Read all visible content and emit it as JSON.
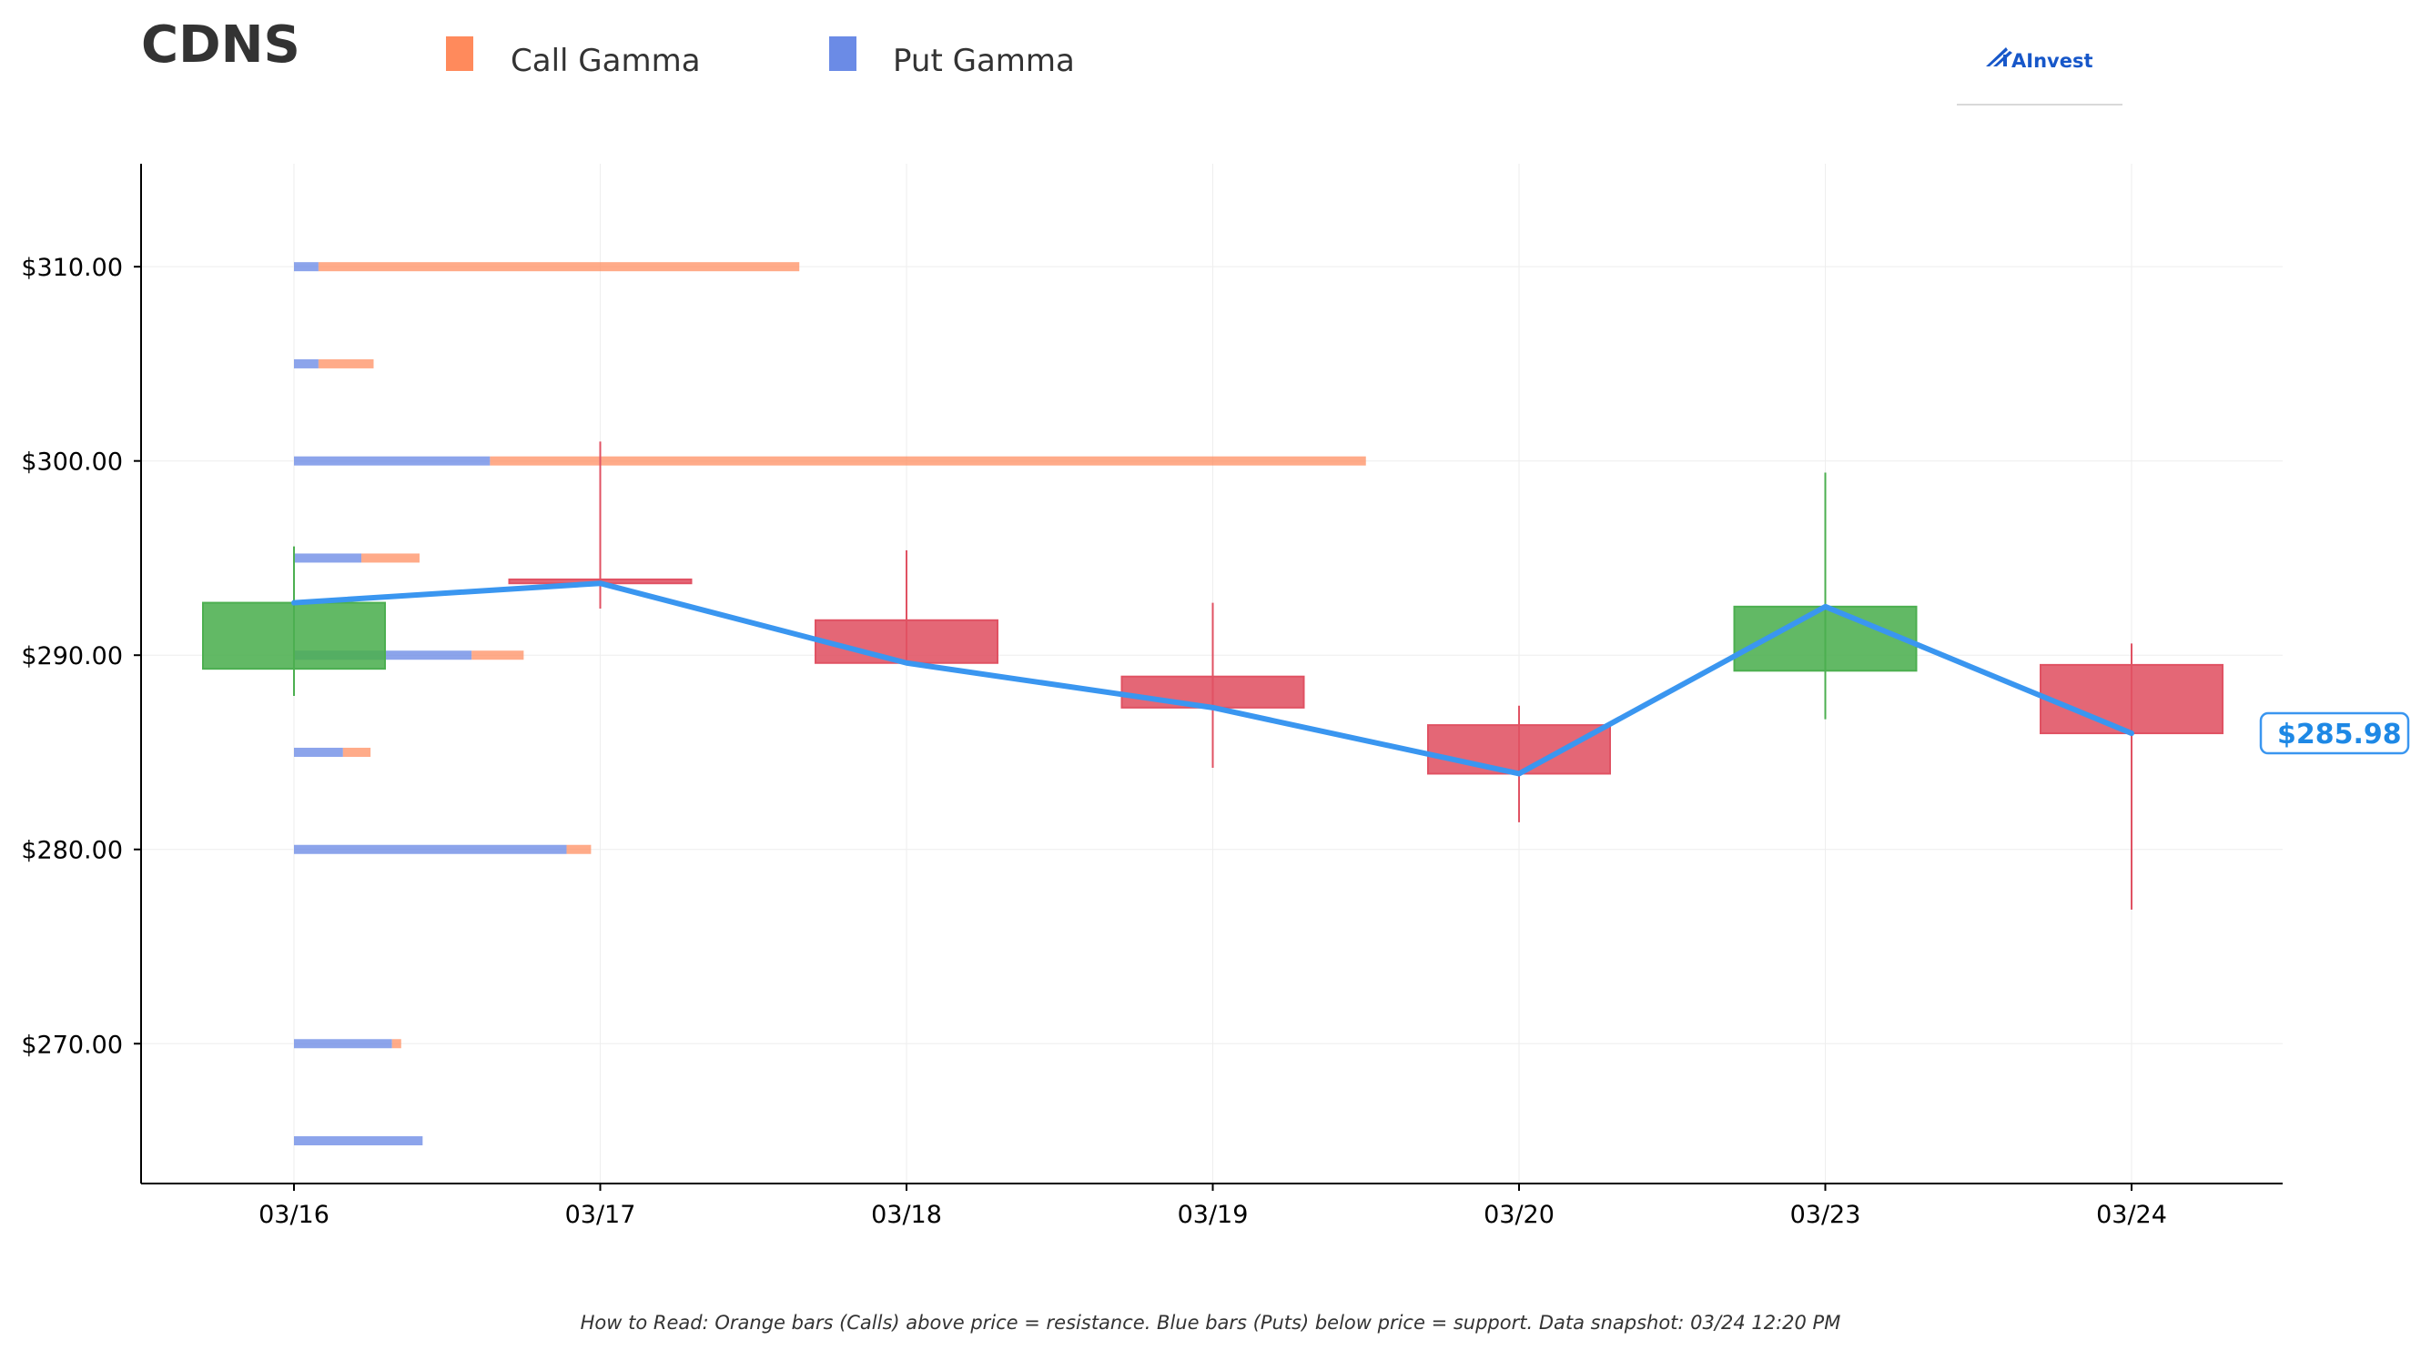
{
  "title": "CDNS",
  "legend": [
    {
      "label": "Call Gamma",
      "color": "#ff8a5c"
    },
    {
      "label": "Put Gamma",
      "color": "#6b8be6"
    }
  ],
  "logo": {
    "text": "AInvest",
    "icon": "aim-logo-icon"
  },
  "footnote": "How to Read: Orange bars (Calls) above price = resistance. Blue bars (Puts) below price = support. Data snapshot: 03/24 12:20 PM",
  "price_tag": "$285.98",
  "colors": {
    "up": "#4caf50",
    "down": "#e05263",
    "line": "#3a96f0",
    "call": "#ff8a5c",
    "put": "#6b8be6"
  },
  "chart_data": [
    {
      "type": "candlestick",
      "title": "CDNS",
      "categories": [
        "03/16",
        "03/17",
        "03/18",
        "03/19",
        "03/20",
        "03/23",
        "03/24"
      ],
      "ohlc": [
        {
          "date": "03/16",
          "open": 289.3,
          "high": 295.6,
          "low": 287.9,
          "close": 292.7
        },
        {
          "date": "03/17",
          "open": 293.9,
          "high": 301.0,
          "low": 292.4,
          "close": 293.7
        },
        {
          "date": "03/18",
          "open": 291.8,
          "high": 295.4,
          "low": 289.5,
          "close": 289.6
        },
        {
          "date": "03/19",
          "open": 288.9,
          "high": 292.7,
          "low": 284.2,
          "close": 287.3
        },
        {
          "date": "03/20",
          "open": 286.4,
          "high": 287.4,
          "low": 281.4,
          "close": 283.9
        },
        {
          "date": "03/23",
          "open": 289.2,
          "high": 299.4,
          "low": 286.7,
          "close": 292.5
        },
        {
          "date": "03/24",
          "open": 289.5,
          "high": 290.6,
          "low": 276.9,
          "close": 285.98
        }
      ],
      "close_line": [
        292.7,
        293.7,
        289.6,
        287.3,
        283.9,
        292.5,
        285.98
      ],
      "ylim": [
        262.8,
        315.3
      ],
      "yticks": [
        270,
        280,
        290,
        300,
        310
      ],
      "ytick_labels": [
        "$270.00",
        "$280.00",
        "$290.00",
        "$300.00",
        "$310.00"
      ],
      "grid": true
    },
    {
      "type": "bar",
      "orientation": "horizontal",
      "stacked": true,
      "categories": [
        310,
        305,
        300,
        295,
        290,
        285,
        280,
        270,
        265
      ],
      "series": [
        {
          "name": "Put Gamma",
          "values": [
            0.08,
            0.08,
            0.64,
            0.22,
            0.58,
            0.16,
            0.89,
            0.32,
            0.42
          ]
        },
        {
          "name": "Call Gamma",
          "values": [
            1.57,
            0.18,
            2.86,
            0.19,
            0.17,
            0.09,
            0.08,
            0.03,
            0.0
          ]
        }
      ],
      "unit": "days along date axis (relative length)"
    }
  ]
}
